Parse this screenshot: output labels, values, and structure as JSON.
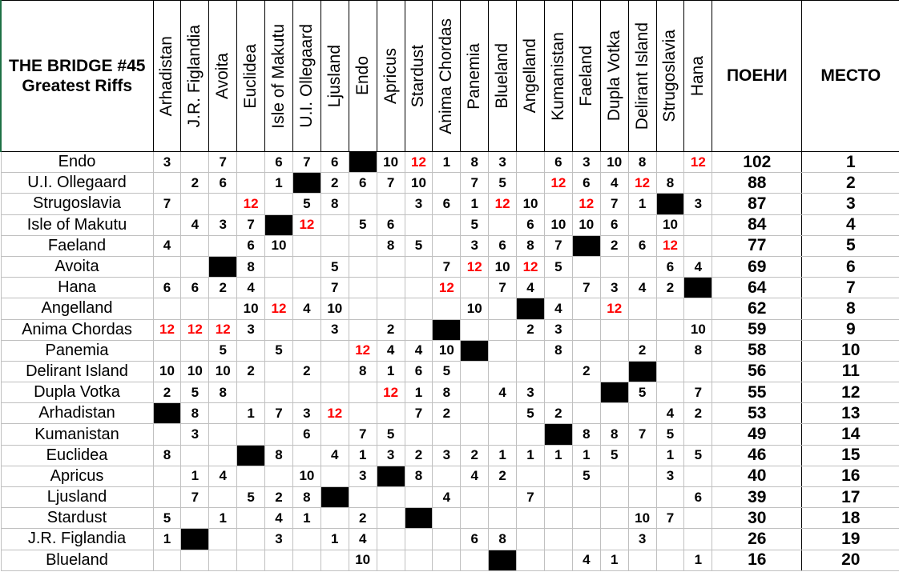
{
  "title": {
    "line1": "THE BRIDGE #45",
    "line2": "Greatest Riffs"
  },
  "columns": {
    "voters": [
      "Arhadistan",
      "J.R. Figlandia",
      "Avoita",
      "Euclidea",
      "Isle of Makutu",
      "U.I. Ollegaard",
      "Ljusland",
      "Endo",
      "Apricus",
      "Stardust",
      "Anima Chordas",
      "Panemia",
      "Blueland",
      "Angelland",
      "Kumanistan",
      "Faeland",
      "Dupla Votka",
      "Delirant Island",
      "Strugoslavia",
      "Hana"
    ],
    "points_header": "ПОЕНИ",
    "place_header": "МЕСТО"
  },
  "colors": {
    "twelve_points": "#ff0000",
    "self_vote": "#000000"
  },
  "rows": [
    {
      "country": "Endo",
      "votes": [
        3,
        null,
        7,
        null,
        6,
        7,
        6,
        null,
        10,
        12,
        1,
        8,
        3,
        null,
        6,
        3,
        10,
        8,
        null,
        12
      ],
      "points": 102,
      "place": 1
    },
    {
      "country": "U.I. Ollegaard",
      "votes": [
        null,
        2,
        6,
        null,
        1,
        null,
        2,
        6,
        7,
        10,
        null,
        7,
        5,
        null,
        12,
        6,
        4,
        12,
        8,
        null
      ],
      "points": 88,
      "place": 2
    },
    {
      "country": "Strugoslavia",
      "votes": [
        7,
        null,
        null,
        12,
        null,
        5,
        8,
        null,
        null,
        3,
        6,
        1,
        12,
        10,
        null,
        12,
        7,
        1,
        null,
        3
      ],
      "points": 87,
      "place": 3
    },
    {
      "country": "Isle of Makutu",
      "votes": [
        null,
        4,
        3,
        7,
        null,
        12,
        null,
        5,
        6,
        null,
        null,
        5,
        null,
        6,
        10,
        10,
        6,
        null,
        10,
        null
      ],
      "points": 84,
      "place": 4
    },
    {
      "country": "Faeland",
      "votes": [
        4,
        null,
        null,
        6,
        10,
        null,
        null,
        null,
        8,
        5,
        null,
        3,
        6,
        8,
        7,
        null,
        2,
        6,
        12,
        null
      ],
      "points": 77,
      "place": 5
    },
    {
      "country": "Avoita",
      "votes": [
        null,
        null,
        null,
        8,
        null,
        null,
        5,
        null,
        null,
        null,
        7,
        12,
        10,
        12,
        5,
        null,
        null,
        null,
        6,
        4
      ],
      "points": 69,
      "place": 6
    },
    {
      "country": "Hana",
      "votes": [
        6,
        6,
        2,
        4,
        null,
        null,
        7,
        null,
        null,
        null,
        12,
        null,
        7,
        4,
        null,
        7,
        3,
        4,
        2,
        null
      ],
      "points": 64,
      "place": 7
    },
    {
      "country": "Angelland",
      "votes": [
        null,
        null,
        null,
        10,
        12,
        4,
        10,
        null,
        null,
        null,
        null,
        10,
        null,
        null,
        4,
        null,
        12,
        null,
        null,
        null
      ],
      "points": 62,
      "place": 8
    },
    {
      "country": "Anima Chordas",
      "votes": [
        12,
        12,
        12,
        3,
        null,
        null,
        3,
        null,
        2,
        null,
        null,
        null,
        null,
        2,
        3,
        null,
        null,
        null,
        null,
        10
      ],
      "points": 59,
      "place": 9
    },
    {
      "country": "Panemia",
      "votes": [
        null,
        null,
        5,
        null,
        5,
        null,
        null,
        12,
        4,
        4,
        10,
        null,
        null,
        null,
        8,
        null,
        null,
        2,
        null,
        8
      ],
      "points": 58,
      "place": 10
    },
    {
      "country": "Delirant Island",
      "votes": [
        10,
        10,
        10,
        2,
        null,
        2,
        null,
        8,
        1,
        6,
        5,
        null,
        null,
        null,
        null,
        2,
        null,
        null,
        null,
        null
      ],
      "points": 56,
      "place": 11
    },
    {
      "country": "Dupla Votka",
      "votes": [
        2,
        5,
        8,
        null,
        null,
        null,
        null,
        null,
        12,
        1,
        8,
        null,
        4,
        3,
        null,
        null,
        null,
        5,
        null,
        7
      ],
      "points": 55,
      "place": 12
    },
    {
      "country": "Arhadistan",
      "votes": [
        null,
        8,
        null,
        1,
        7,
        3,
        12,
        null,
        null,
        7,
        2,
        null,
        null,
        5,
        2,
        null,
        null,
        null,
        4,
        2
      ],
      "points": 53,
      "place": 13
    },
    {
      "country": "Kumanistan",
      "votes": [
        null,
        3,
        null,
        null,
        null,
        6,
        null,
        7,
        5,
        null,
        null,
        null,
        null,
        null,
        null,
        8,
        8,
        7,
        5,
        null
      ],
      "points": 49,
      "place": 14
    },
    {
      "country": "Euclidea",
      "votes": [
        8,
        null,
        null,
        null,
        8,
        null,
        4,
        1,
        3,
        2,
        3,
        2,
        1,
        1,
        1,
        1,
        5,
        null,
        1,
        5
      ],
      "points": 46,
      "place": 15
    },
    {
      "country": "Apricus",
      "votes": [
        null,
        1,
        4,
        null,
        null,
        10,
        null,
        3,
        null,
        8,
        null,
        4,
        2,
        null,
        null,
        5,
        null,
        null,
        3,
        null
      ],
      "points": 40,
      "place": 16
    },
    {
      "country": "Ljusland",
      "votes": [
        null,
        7,
        null,
        5,
        2,
        8,
        null,
        null,
        null,
        null,
        4,
        null,
        null,
        7,
        null,
        null,
        null,
        null,
        null,
        6
      ],
      "points": 39,
      "place": 17
    },
    {
      "country": "Stardust",
      "votes": [
        5,
        null,
        1,
        null,
        4,
        1,
        null,
        2,
        null,
        null,
        null,
        null,
        null,
        null,
        null,
        null,
        null,
        10,
        7,
        null
      ],
      "points": 30,
      "place": 18
    },
    {
      "country": "J.R. Figlandia",
      "votes": [
        1,
        null,
        null,
        null,
        3,
        null,
        1,
        4,
        null,
        null,
        null,
        6,
        8,
        null,
        null,
        null,
        null,
        3,
        null,
        null
      ],
      "points": 26,
      "place": 19
    },
    {
      "country": "Blueland",
      "votes": [
        null,
        null,
        null,
        null,
        null,
        null,
        null,
        10,
        null,
        null,
        null,
        null,
        null,
        null,
        null,
        4,
        1,
        null,
        null,
        1
      ],
      "points": 16,
      "place": 20
    }
  ]
}
